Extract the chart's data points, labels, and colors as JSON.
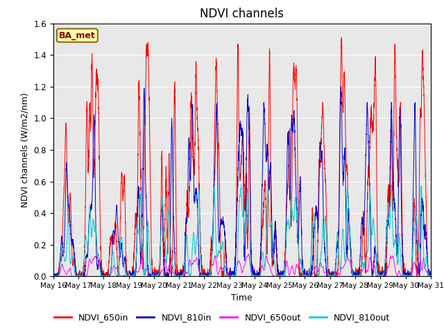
{
  "title": "NDVI channels",
  "xlabel": "Time",
  "ylabel": "NDVI channels (W/m2/nm)",
  "ylim": [
    0,
    1.6
  ],
  "legend_label": "BA_met",
  "channels": {
    "NDVI_650in": {
      "color": "#FF0000",
      "label": "NDVI_650in"
    },
    "NDVI_810in": {
      "color": "#0000CC",
      "label": "NDVI_810in"
    },
    "NDVI_650out": {
      "color": "#FF00FF",
      "label": "NDVI_650out"
    },
    "NDVI_810out": {
      "color": "#00CCCC",
      "label": "NDVI_810out"
    }
  },
  "xtick_labels": [
    "May 16",
    "May 17",
    "May 18",
    "May 19",
    "May 20",
    "May 21",
    "May 22",
    "May 23",
    "May 24",
    "May 25",
    "May 26",
    "May 27",
    "May 28",
    "May 29",
    "May 30",
    "May 31"
  ],
  "background_color": "#E8E8E8",
  "title_fontsize": 12,
  "axis_fontsize": 9,
  "legend_fontsize": 9,
  "day_peaks_650in": [
    0.97,
    1.41,
    0.66,
    1.48,
    1.23,
    1.36,
    1.38,
    1.47,
    1.44,
    1.35,
    1.1,
    1.51,
    1.39,
    1.47,
    1.43
  ],
  "day_peaks_810in": [
    0.72,
    1.02,
    0.45,
    1.19,
    1.0,
    1.09,
    1.09,
    1.15,
    1.1,
    1.05,
    0.85,
    1.2,
    1.1,
    1.1,
    1.1
  ],
  "day_peaks_650out": [
    0.08,
    0.13,
    0.07,
    0.12,
    0.11,
    0.12,
    0.13,
    0.14,
    0.13,
    0.11,
    0.09,
    0.11,
    0.12,
    0.13,
    0.12
  ],
  "day_peaks_810out": [
    0.4,
    0.45,
    0.25,
    0.52,
    0.5,
    0.55,
    0.56,
    0.58,
    0.56,
    0.5,
    0.4,
    0.56,
    0.53,
    0.58,
    0.57
  ]
}
